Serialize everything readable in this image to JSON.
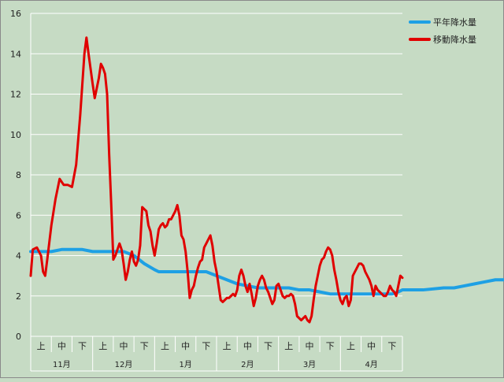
{
  "chart_data": {
    "type": "line",
    "ylim": [
      0,
      16
    ],
    "yticks": [
      "0",
      "2",
      "4",
      "6",
      "8",
      "10",
      "12",
      "14",
      "16"
    ],
    "grid": true,
    "legend_position": "top-right",
    "colors": {
      "background": "#c6dbc4",
      "grid": "#ffffff",
      "normal": "#1ea0e4",
      "moving": "#e00000"
    },
    "period_labels": [
      "上",
      "中",
      "下"
    ],
    "months": [
      "11月",
      "12月",
      "1月",
      "2月",
      "3月",
      "4月"
    ],
    "x_count": 180,
    "series": [
      {
        "name": "平年降水量",
        "color": "#1ea0e4",
        "points": [
          [
            0,
            4.2
          ],
          [
            10,
            4.2
          ],
          [
            15,
            4.3
          ],
          [
            20,
            4.3
          ],
          [
            25,
            4.3
          ],
          [
            30,
            4.2
          ],
          [
            35,
            4.2
          ],
          [
            40,
            4.2
          ],
          [
            45,
            4.2
          ],
          [
            50,
            4.0
          ],
          [
            55,
            3.6
          ],
          [
            60,
            3.3
          ],
          [
            62,
            3.2
          ],
          [
            70,
            3.2
          ],
          [
            80,
            3.2
          ],
          [
            85,
            3.2
          ],
          [
            90,
            3.0
          ],
          [
            95,
            2.8
          ],
          [
            100,
            2.6
          ],
          [
            105,
            2.5
          ],
          [
            110,
            2.4
          ],
          [
            125,
            2.4
          ],
          [
            130,
            2.3
          ],
          [
            135,
            2.3
          ],
          [
            140,
            2.2
          ],
          [
            145,
            2.1
          ],
          [
            165,
            2.1
          ],
          [
            175,
            2.1
          ],
          [
            178,
            2.2
          ],
          [
            180,
            2.3
          ],
          [
            190,
            2.3
          ],
          [
            200,
            2.4
          ],
          [
            205,
            2.4
          ],
          [
            210,
            2.5
          ],
          [
            215,
            2.6
          ],
          [
            220,
            2.7
          ],
          [
            225,
            2.8
          ],
          [
            232,
            2.8
          ],
          [
            236,
            2.7
          ],
          [
            240,
            2.5
          ],
          [
            244,
            2.35
          ],
          [
            248,
            2.3
          ],
          [
            252,
            2.35
          ],
          [
            256,
            2.4
          ],
          [
            262,
            2.45
          ],
          [
            266,
            2.5
          ],
          [
            270,
            2.6
          ],
          [
            276,
            2.65
          ],
          [
            280,
            2.7
          ],
          [
            285,
            2.8
          ],
          [
            290,
            3.0
          ],
          [
            295,
            3.15
          ],
          [
            300,
            3.2
          ],
          [
            305,
            3.2
          ],
          [
            309,
            3.1
          ],
          [
            313,
            2.9
          ],
          [
            317,
            2.8
          ],
          [
            321,
            2.8
          ],
          [
            325,
            2.9
          ]
        ]
      },
      {
        "name": "移動降水量",
        "color": "#e00000",
        "points": [
          [
            0,
            3.0
          ],
          [
            1,
            4.3
          ],
          [
            3,
            4.4
          ],
          [
            5,
            4.0
          ],
          [
            6,
            3.2
          ],
          [
            7,
            3.0
          ],
          [
            8,
            3.8
          ],
          [
            10,
            5.5
          ],
          [
            12,
            6.8
          ],
          [
            14,
            7.8
          ],
          [
            16,
            7.5
          ],
          [
            18,
            7.5
          ],
          [
            20,
            7.4
          ],
          [
            22,
            8.5
          ],
          [
            24,
            11.0
          ],
          [
            26,
            14.0
          ],
          [
            27,
            14.8
          ],
          [
            28,
            14.0
          ],
          [
            30,
            12.5
          ],
          [
            31,
            11.8
          ],
          [
            32,
            12.3
          ],
          [
            33,
            12.8
          ],
          [
            34,
            13.5
          ],
          [
            35,
            13.3
          ],
          [
            36,
            13.0
          ],
          [
            37,
            12.0
          ],
          [
            38,
            9.0
          ],
          [
            39,
            6.5
          ],
          [
            40,
            3.8
          ],
          [
            41,
            4.0
          ],
          [
            42,
            4.3
          ],
          [
            43,
            4.6
          ],
          [
            44,
            4.3
          ],
          [
            45,
            3.6
          ],
          [
            46,
            2.8
          ],
          [
            47,
            3.2
          ],
          [
            48,
            3.8
          ],
          [
            49,
            4.2
          ],
          [
            50,
            3.7
          ],
          [
            51,
            3.5
          ],
          [
            52,
            3.8
          ],
          [
            53,
            4.5
          ],
          [
            54,
            6.4
          ],
          [
            55,
            6.3
          ],
          [
            56,
            6.2
          ],
          [
            57,
            5.5
          ],
          [
            58,
            5.2
          ],
          [
            59,
            4.5
          ],
          [
            60,
            4.0
          ],
          [
            61,
            4.6
          ],
          [
            62,
            5.3
          ],
          [
            63,
            5.5
          ],
          [
            64,
            5.6
          ],
          [
            65,
            5.4
          ],
          [
            66,
            5.5
          ],
          [
            67,
            5.8
          ],
          [
            68,
            5.8
          ],
          [
            69,
            6.0
          ],
          [
            70,
            6.2
          ],
          [
            71,
            6.5
          ],
          [
            72,
            6.0
          ],
          [
            73,
            5.0
          ],
          [
            74,
            4.8
          ],
          [
            75,
            4.2
          ],
          [
            76,
            3.2
          ],
          [
            77,
            1.9
          ],
          [
            78,
            2.3
          ],
          [
            79,
            2.5
          ],
          [
            80,
            3.0
          ],
          [
            81,
            3.4
          ],
          [
            82,
            3.7
          ],
          [
            83,
            3.8
          ],
          [
            84,
            4.4
          ],
          [
            85,
            4.6
          ],
          [
            86,
            4.8
          ],
          [
            87,
            5.0
          ],
          [
            88,
            4.5
          ],
          [
            89,
            3.7
          ],
          [
            90,
            3.2
          ],
          [
            91,
            2.5
          ],
          [
            92,
            1.8
          ],
          [
            93,
            1.7
          ],
          [
            94,
            1.8
          ],
          [
            95,
            1.9
          ],
          [
            96,
            1.9
          ],
          [
            97,
            2.0
          ],
          [
            98,
            2.1
          ],
          [
            99,
            2.0
          ],
          [
            100,
            2.3
          ],
          [
            101,
            3.0
          ],
          [
            102,
            3.3
          ],
          [
            103,
            3.0
          ],
          [
            104,
            2.5
          ],
          [
            105,
            2.2
          ],
          [
            106,
            2.6
          ],
          [
            107,
            2.1
          ],
          [
            108,
            1.5
          ],
          [
            109,
            1.9
          ],
          [
            110,
            2.5
          ],
          [
            111,
            2.8
          ],
          [
            112,
            3.0
          ],
          [
            113,
            2.8
          ],
          [
            114,
            2.4
          ],
          [
            115,
            2.2
          ],
          [
            116,
            1.9
          ],
          [
            117,
            1.6
          ],
          [
            118,
            1.8
          ],
          [
            119,
            2.5
          ],
          [
            120,
            2.6
          ],
          [
            121,
            2.3
          ],
          [
            122,
            2.0
          ],
          [
            123,
            1.9
          ],
          [
            124,
            2.0
          ],
          [
            125,
            2.0
          ],
          [
            126,
            2.1
          ],
          [
            127,
            2.0
          ],
          [
            128,
            1.6
          ],
          [
            129,
            1.0
          ],
          [
            130,
            0.9
          ],
          [
            131,
            0.8
          ],
          [
            132,
            0.9
          ],
          [
            133,
            1.0
          ],
          [
            134,
            0.8
          ],
          [
            135,
            0.7
          ],
          [
            136,
            1.0
          ],
          [
            137,
            1.8
          ],
          [
            138,
            2.5
          ],
          [
            139,
            3.0
          ],
          [
            140,
            3.5
          ],
          [
            141,
            3.8
          ],
          [
            142,
            3.9
          ],
          [
            143,
            4.2
          ],
          [
            144,
            4.4
          ],
          [
            145,
            4.3
          ],
          [
            146,
            4.0
          ],
          [
            147,
            3.3
          ],
          [
            148,
            2.8
          ],
          [
            149,
            2.2
          ],
          [
            150,
            1.8
          ],
          [
            151,
            1.6
          ],
          [
            152,
            1.9
          ],
          [
            153,
            2.0
          ],
          [
            154,
            1.5
          ],
          [
            155,
            1.8
          ],
          [
            156,
            3.0
          ],
          [
            157,
            3.2
          ],
          [
            158,
            3.4
          ],
          [
            159,
            3.6
          ],
          [
            160,
            3.6
          ],
          [
            161,
            3.5
          ],
          [
            162,
            3.2
          ],
          [
            163,
            3.0
          ],
          [
            164,
            2.8
          ],
          [
            165,
            2.5
          ],
          [
            166,
            2.0
          ],
          [
            167,
            2.5
          ],
          [
            168,
            2.3
          ],
          [
            169,
            2.2
          ],
          [
            170,
            2.1
          ],
          [
            171,
            2.0
          ],
          [
            172,
            2.0
          ],
          [
            173,
            2.2
          ],
          [
            174,
            2.5
          ],
          [
            175,
            2.3
          ],
          [
            176,
            2.2
          ],
          [
            177,
            2.0
          ],
          [
            178,
            2.5
          ],
          [
            179,
            3.0
          ],
          [
            180,
            2.9
          ]
        ]
      }
    ]
  }
}
